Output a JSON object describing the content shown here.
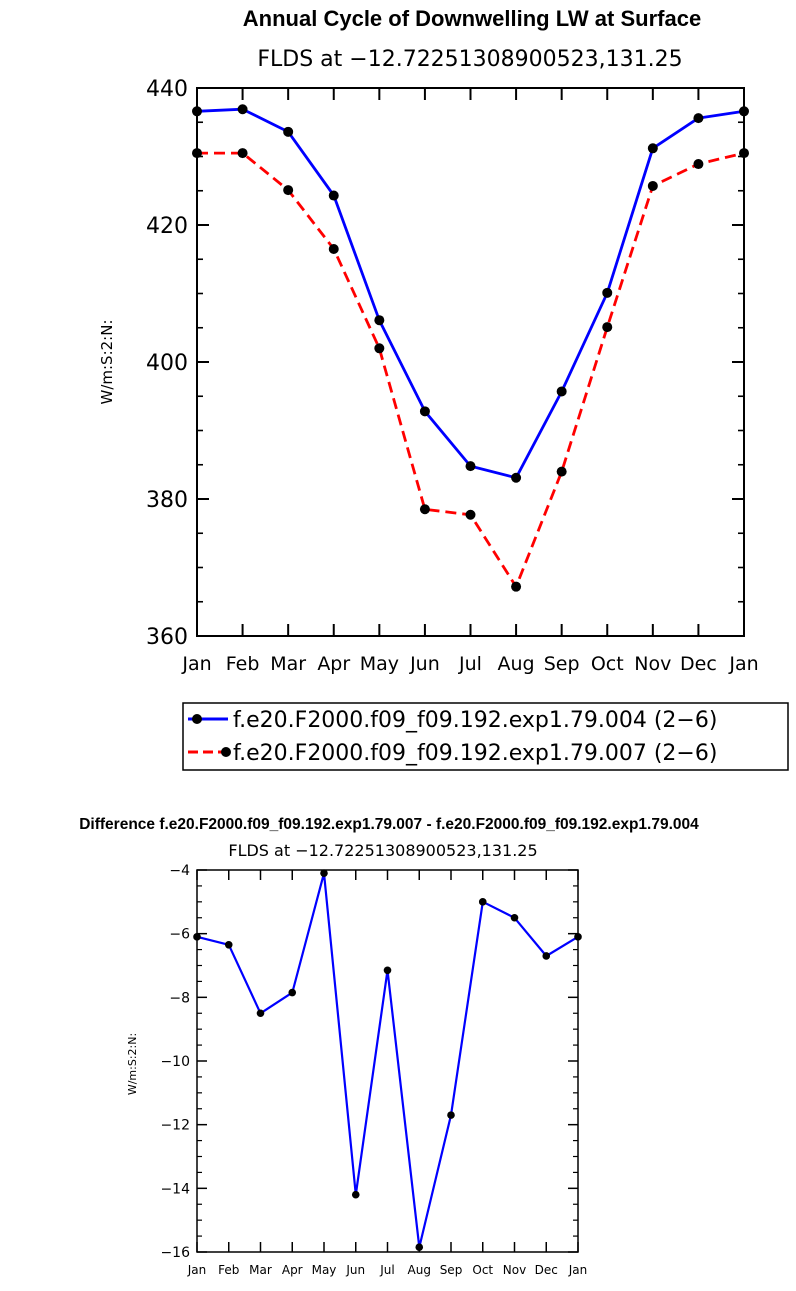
{
  "chart_data": [
    {
      "type": "line",
      "title": "Annual Cycle of Downwelling LW at Surface",
      "subtitle": "FLDS at −12.72251308900523,131.25",
      "xlabel": "",
      "ylabel": "W/m:S:2:N:",
      "categories": [
        "Jan",
        "Feb",
        "Mar",
        "Apr",
        "May",
        "Jun",
        "Jul",
        "Aug",
        "Sep",
        "Oct",
        "Nov",
        "Dec",
        "Jan"
      ],
      "ylim": [
        360,
        440
      ],
      "yticks": [
        360,
        380,
        400,
        420,
        440
      ],
      "ytick_labels": [
        "360",
        "380",
        "400",
        "420",
        "440"
      ],
      "grid": false,
      "legend_position": "bottom",
      "series": [
        {
          "name": "f.e20.F2000.f09_f09.192.exp1.79.004 (2−6)",
          "values": [
            436.6,
            436.9,
            433.6,
            424.3,
            406.1,
            392.8,
            384.8,
            383.1,
            395.7,
            410.1,
            431.2,
            435.6,
            436.6
          ],
          "color": "#0000ff",
          "dash": "solid"
        },
        {
          "name": "f.e20.F2000.f09_f09.192.exp1.79.007 (2−6)",
          "values": [
            430.5,
            430.5,
            425.1,
            416.5,
            402.0,
            378.5,
            377.7,
            367.2,
            384.0,
            405.1,
            425.7,
            428.9,
            430.5
          ],
          "color": "#ff0000",
          "dash": "dashed"
        }
      ]
    },
    {
      "type": "line",
      "title": "Difference f.e20.F2000.f09_f09.192.exp1.79.007 - f.e20.F2000.f09_f09.192.exp1.79.004",
      "subtitle": "FLDS at −12.72251308900523,131.25",
      "xlabel": "",
      "ylabel": "W/m:S:2:N:",
      "categories": [
        "Jan",
        "Feb",
        "Mar",
        "Apr",
        "May",
        "Jun",
        "Jul",
        "Aug",
        "Sep",
        "Oct",
        "Nov",
        "Dec",
        "Jan"
      ],
      "ylim": [
        -16,
        -4
      ],
      "yticks": [
        -16,
        -14,
        -12,
        -10,
        -8,
        -6,
        -4
      ],
      "ytick_labels": [
        "−16",
        "−14",
        "−12",
        "−10",
        "−8",
        "−6",
        "−4"
      ],
      "grid": false,
      "series": [
        {
          "values": [
            -6.1,
            -6.35,
            -8.5,
            -7.85,
            -4.1,
            -14.2,
            -7.15,
            -15.85,
            -11.7,
            -5.0,
            -5.5,
            -6.7,
            -6.1
          ],
          "color": "#0000ff",
          "dash": "solid"
        }
      ]
    }
  ]
}
